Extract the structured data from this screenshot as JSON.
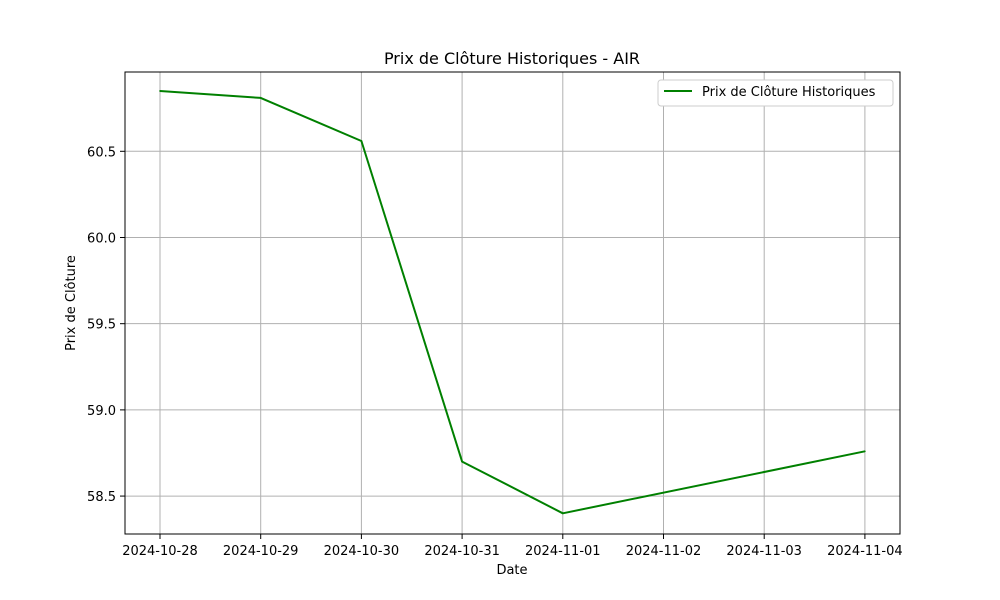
{
  "chart_data": {
    "type": "line",
    "title": "Prix de Clôture Historiques - AIR",
    "xlabel": "Date",
    "ylabel": "Prix de Clôture",
    "x_ticks": [
      "2024-10-28",
      "2024-10-29",
      "2024-10-30",
      "2024-10-31",
      "2024-11-01",
      "2024-11-02",
      "2024-11-03",
      "2024-11-04"
    ],
    "y_ticks": [
      "58.5",
      "59.0",
      "59.5",
      "60.0",
      "60.5"
    ],
    "ylim": [
      58.28,
      60.96
    ],
    "grid": true,
    "legend_position": "top-right",
    "series": [
      {
        "name": "Prix de Clôture Historiques",
        "color": "#008000",
        "points": [
          {
            "x": "2024-10-28",
            "y": 60.85
          },
          {
            "x": "2024-10-29",
            "y": 60.81
          },
          {
            "x": "2024-10-30",
            "y": 60.56
          },
          {
            "x": "2024-10-31",
            "y": 58.7
          },
          {
            "x": "2024-11-01",
            "y": 58.4
          },
          {
            "x": "2024-11-04",
            "y": 58.76
          }
        ]
      }
    ]
  }
}
